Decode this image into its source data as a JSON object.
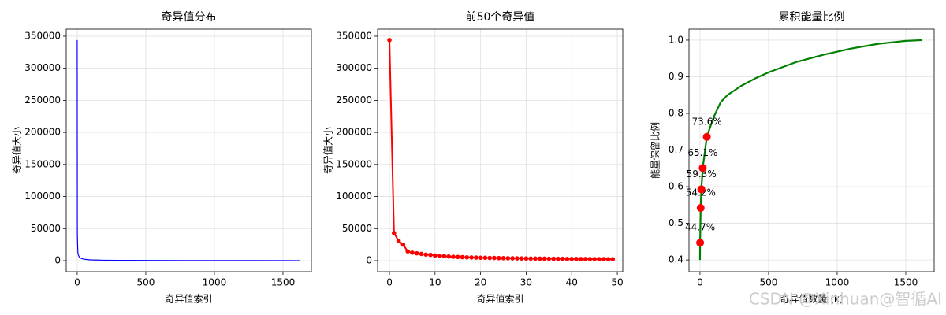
{
  "chart_data": [
    {
      "type": "line",
      "title": "奇异值分布",
      "xlabel": "奇异值索引",
      "ylabel": "奇异值大小",
      "color": "#0000ff",
      "line_width": 1.2,
      "grid": true,
      "x": [
        0,
        1,
        2,
        3,
        5,
        8,
        10,
        15,
        20,
        30,
        50,
        80,
        100,
        150,
        200,
        300,
        500,
        800,
        1000,
        1300,
        1620
      ],
      "values": [
        344000,
        43000,
        31000,
        25000,
        12500,
        9500,
        8000,
        5800,
        4600,
        3400,
        2200,
        1500,
        1200,
        900,
        700,
        500,
        300,
        200,
        150,
        100,
        50
      ],
      "xlim": [
        -80,
        1707
      ],
      "ylim": [
        -17200,
        361000
      ],
      "xticks": [
        0,
        500,
        1000,
        1500
      ],
      "yticks": [
        0,
        50000,
        100000,
        150000,
        200000,
        250000,
        300000,
        350000
      ]
    },
    {
      "type": "line",
      "title": "前50个奇异值",
      "xlabel": "奇异值索引",
      "ylabel": "奇异值大小",
      "color": "#ff0000",
      "line_width": 2,
      "marker": true,
      "grid": true,
      "x": [
        0,
        1,
        2,
        3,
        4,
        5,
        6,
        7,
        8,
        9,
        10,
        11,
        12,
        13,
        14,
        15,
        16,
        17,
        18,
        19,
        20,
        21,
        22,
        23,
        24,
        25,
        26,
        27,
        28,
        29,
        30,
        31,
        32,
        33,
        34,
        35,
        36,
        37,
        38,
        39,
        40,
        41,
        42,
        43,
        44,
        45,
        46,
        47,
        48,
        49
      ],
      "values": [
        344000,
        43000,
        31000,
        25000,
        14500,
        12500,
        11500,
        10500,
        9500,
        9000,
        8000,
        7500,
        7000,
        6500,
        6000,
        5800,
        5500,
        5200,
        5000,
        4800,
        4600,
        4500,
        4300,
        4200,
        4000,
        3900,
        3800,
        3700,
        3600,
        3500,
        3400,
        3300,
        3250,
        3200,
        3100,
        3000,
        2950,
        2900,
        2800,
        2750,
        2700,
        2650,
        2600,
        2550,
        2500,
        2450,
        2400,
        2350,
        2300,
        2250
      ],
      "xlim": [
        -2.6,
        51.2
      ],
      "ylim": [
        -17200,
        361000
      ],
      "xticks": [
        0,
        10,
        20,
        30,
        40,
        50
      ],
      "yticks": [
        0,
        50000,
        100000,
        150000,
        200000,
        250000,
        300000,
        350000
      ]
    },
    {
      "type": "line",
      "title": "累积能量比例",
      "xlabel": "奇异值数量 (k)",
      "ylabel": "能量保留比例",
      "color": "#008000",
      "line_width": 2.2,
      "grid": true,
      "x": [
        0,
        1,
        5,
        10,
        20,
        50,
        100,
        150,
        200,
        300,
        400,
        500,
        700,
        900,
        1100,
        1300,
        1500,
        1620
      ],
      "values": [
        0.4,
        0.447,
        0.542,
        0.593,
        0.651,
        0.736,
        0.79,
        0.83,
        0.85,
        0.875,
        0.895,
        0.912,
        0.94,
        0.96,
        0.977,
        0.99,
        0.998,
        1.0
      ],
      "xlim": [
        -80,
        1707
      ],
      "ylim": [
        0.368,
        1.03
      ],
      "xticks": [
        0,
        500,
        1000,
        1500
      ],
      "yticks": [
        0.4,
        0.5,
        0.6,
        0.7,
        0.8,
        0.9,
        {
          "value": 1,
          "label": "1.0"
        }
      ],
      "markers": {
        "color": "#ff0000",
        "x": [
          1,
          5,
          10,
          20,
          50
        ],
        "values": [
          0.447,
          0.542,
          0.593,
          0.651,
          0.736
        ],
        "value_labels": [
          "44.7%",
          "54.2%",
          "59.3%",
          "65.1%",
          "73.6%"
        ]
      }
    }
  ],
  "watermark": "CSDN @Xinhuan@智循AI"
}
